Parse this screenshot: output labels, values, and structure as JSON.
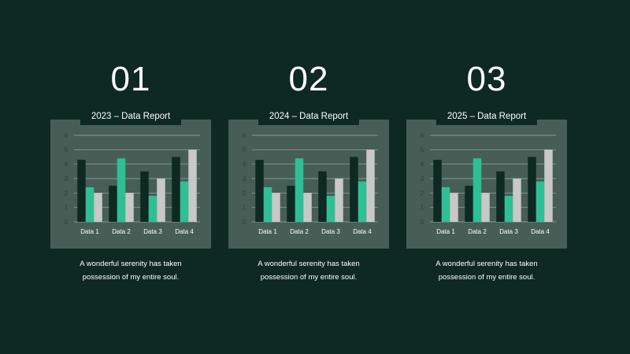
{
  "panels": [
    {
      "number": "01",
      "tab_title": "2023 – Data Report",
      "caption_line1": "A wonderful serenity has taken",
      "caption_line2": "possession of my entire soul."
    },
    {
      "number": "02",
      "tab_title": "2024 – Data Report",
      "caption_line1": "A wonderful serenity has taken",
      "caption_line2": "possession of my entire soul."
    },
    {
      "number": "03",
      "tab_title": "2025 – Data Report",
      "caption_line1": "A wonderful serenity has taken",
      "caption_line2": "possession of my entire soul."
    }
  ],
  "colors": {
    "background": "#0e2822",
    "card": "#465e56",
    "series": [
      "#0e2822",
      "#2fbf94",
      "#c8c8c8"
    ]
  },
  "chart_data": [
    {
      "type": "bar",
      "categories": [
        "Data 1",
        "Data 2",
        "Data 3",
        "Data 4"
      ],
      "series": [
        {
          "values": [
            4.3,
            2.5,
            3.5,
            4.5
          ]
        },
        {
          "values": [
            2.4,
            4.4,
            1.8,
            2.8
          ]
        },
        {
          "values": [
            2.0,
            2.0,
            3.0,
            5.0
          ]
        }
      ],
      "yticks": [
        "0",
        "1",
        "2",
        "3",
        "4",
        "5",
        "6"
      ],
      "ylim": [
        0,
        6
      ],
      "grid": true
    },
    {
      "type": "bar",
      "categories": [
        "Data 1",
        "Data 2",
        "Data 3",
        "Data 4"
      ],
      "series": [
        {
          "values": [
            4.3,
            2.5,
            3.5,
            4.5
          ]
        },
        {
          "values": [
            2.4,
            4.4,
            1.8,
            2.8
          ]
        },
        {
          "values": [
            2.0,
            2.0,
            3.0,
            5.0
          ]
        }
      ],
      "yticks": [
        "0",
        "1",
        "2",
        "3",
        "4",
        "5",
        "6"
      ],
      "ylim": [
        0,
        6
      ],
      "grid": true
    },
    {
      "type": "bar",
      "categories": [
        "Data 1",
        "Data 2",
        "Data 3",
        "Data 4"
      ],
      "series": [
        {
          "values": [
            4.3,
            2.5,
            3.5,
            4.5
          ]
        },
        {
          "values": [
            2.4,
            4.4,
            1.8,
            2.8
          ]
        },
        {
          "values": [
            2.0,
            2.0,
            3.0,
            5.0
          ]
        }
      ],
      "yticks": [
        "0",
        "1",
        "2",
        "3",
        "4",
        "5",
        "6"
      ],
      "ylim": [
        0,
        6
      ],
      "grid": true
    }
  ]
}
